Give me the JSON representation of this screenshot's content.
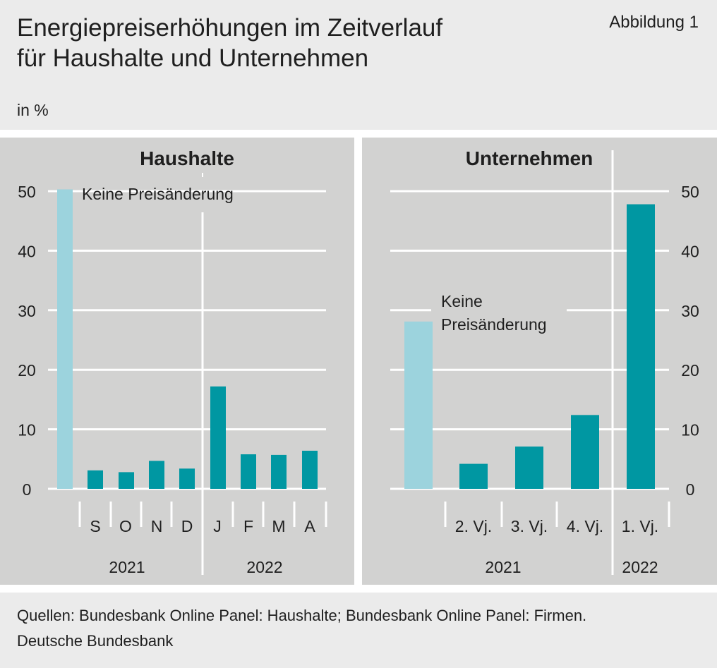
{
  "title_lines": [
    "Energiepreiserhöhungen im Zeitverlauf",
    "für Haushalte und Unternehmen"
  ],
  "figure_label": "Abbildung 1",
  "unit": "in %",
  "footer": {
    "source": "Quellen: Bundesbank Online Panel: Haushalte; Bundesbank Online Panel: Firmen.",
    "publisher": "Deutsche Bundesbank"
  },
  "colors": {
    "panel_bg": "#d2d2d1",
    "light_bar": "#9cd3dd",
    "dark_bar": "#0097a2",
    "page_bg": "#ebebeb"
  },
  "chart_data": [
    {
      "type": "bar",
      "title": "Haushalte",
      "categories": [
        "Keine Preisänderung",
        "S",
        "O",
        "N",
        "D",
        "J",
        "F",
        "M",
        "A"
      ],
      "values": [
        50.3,
        3.1,
        2.8,
        4.7,
        3.4,
        17.2,
        5.8,
        5.7,
        6.4
      ],
      "highlight_first": true,
      "annotation": "Keine Preisänderung",
      "year_groups": [
        {
          "label": "2021",
          "categories": [
            "S",
            "O",
            "N",
            "D"
          ]
        },
        {
          "label": "2022",
          "categories": [
            "J",
            "F",
            "M",
            "A"
          ]
        }
      ],
      "yticks": [
        0,
        10,
        20,
        30,
        40,
        50
      ],
      "ylim": [
        0,
        50
      ],
      "axis_side": "left",
      "grid": true
    },
    {
      "type": "bar",
      "title": "Unternehmen",
      "categories": [
        "Keine Preisänderung",
        "2. Vj.",
        "3. Vj.",
        "4. Vj.",
        "1. Vj."
      ],
      "values": [
        28.1,
        4.2,
        7.1,
        12.4,
        47.8
      ],
      "highlight_first": true,
      "annotation_lines": [
        "Keine",
        "Preisänderung"
      ],
      "year_groups": [
        {
          "label": "2021",
          "categories": [
            "2. Vj.",
            "3. Vj.",
            "4. Vj."
          ]
        },
        {
          "label": "2022",
          "categories": [
            "1. Vj."
          ]
        }
      ],
      "yticks": [
        0,
        10,
        20,
        30,
        40,
        50
      ],
      "ylim": [
        0,
        50
      ],
      "axis_side": "right",
      "grid": true
    }
  ]
}
